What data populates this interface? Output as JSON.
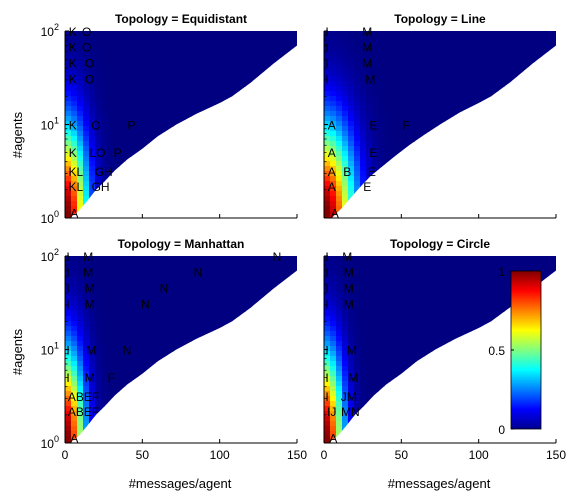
{
  "figure": {
    "xlabel": "#messages/agent",
    "ylabel": "#agents",
    "colormap": "jet",
    "clim": [
      0,
      1
    ],
    "colorbar_ticks": [
      "0",
      "0.5",
      "1"
    ]
  },
  "chart_data": [
    {
      "type": "heatmap",
      "title": "Topology = Equidistant",
      "xlim": [
        0,
        150
      ],
      "ylim": [
        1,
        100
      ],
      "yscale": "log",
      "x_ticks": [
        "0",
        "50",
        "100",
        "150"
      ],
      "y_ticks": [
        "10^0",
        "10^1",
        "10^2"
      ],
      "x_ticks_visible": false,
      "y_ticks_visible": true,
      "boundary": [
        [
          3,
          1
        ],
        [
          9,
          1.2
        ],
        [
          14,
          1.5
        ],
        [
          20,
          2
        ],
        [
          26,
          2.5
        ],
        [
          32,
          3.2
        ],
        [
          40,
          4.2
        ],
        [
          50,
          5.5
        ],
        [
          60,
          7.5
        ],
        [
          72,
          10
        ],
        [
          85,
          13
        ],
        [
          100,
          17
        ],
        [
          108,
          20
        ],
        [
          120,
          28
        ],
        [
          135,
          45
        ],
        [
          150,
          70
        ],
        [
          150,
          100
        ]
      ],
      "hot_decay": 16,
      "annotations": [
        {
          "x": 5,
          "y": 100,
          "text": "K"
        },
        {
          "x": 14,
          "y": 100,
          "text": "O"
        },
        {
          "x": 5,
          "y": 68,
          "text": "K"
        },
        {
          "x": 14,
          "y": 68,
          "text": "O"
        },
        {
          "x": 5,
          "y": 46,
          "text": "K"
        },
        {
          "x": 16,
          "y": 46,
          "text": "O"
        },
        {
          "x": 5,
          "y": 31,
          "text": "K"
        },
        {
          "x": 16,
          "y": 31,
          "text": "O"
        },
        {
          "x": 5,
          "y": 10,
          "text": "K"
        },
        {
          "x": 20,
          "y": 10,
          "text": "O"
        },
        {
          "x": 43,
          "y": 10,
          "text": "P"
        },
        {
          "x": 5,
          "y": 5.1,
          "text": "K"
        },
        {
          "x": 21,
          "y": 5.1,
          "text": "LO"
        },
        {
          "x": 34,
          "y": 5.1,
          "text": "P"
        },
        {
          "x": 7,
          "y": 3.2,
          "text": "KL"
        },
        {
          "x": 25,
          "y": 3.2,
          "text": "GH"
        },
        {
          "x": 7,
          "y": 2.2,
          "text": "KL"
        },
        {
          "x": 23,
          "y": 2.2,
          "text": "GH"
        },
        {
          "x": 6,
          "y": 1.15,
          "text": "A"
        }
      ]
    },
    {
      "type": "heatmap",
      "title": "Topology = Line",
      "xlim": [
        0,
        150
      ],
      "ylim": [
        1,
        100
      ],
      "yscale": "log",
      "x_ticks": [
        "0",
        "50",
        "100",
        "150"
      ],
      "y_ticks": [
        "10^0",
        "10^1",
        "10^2"
      ],
      "x_ticks_visible": false,
      "y_ticks_visible": false,
      "boundary": [
        [
          5,
          1
        ],
        [
          12,
          1.3
        ],
        [
          18,
          1.7
        ],
        [
          24,
          2.2
        ],
        [
          30,
          2.8
        ],
        [
          38,
          3.6
        ],
        [
          46,
          4.6
        ],
        [
          55,
          6
        ],
        [
          65,
          7.8
        ],
        [
          75,
          10
        ],
        [
          88,
          13.5
        ],
        [
          100,
          17
        ],
        [
          108,
          20
        ],
        [
          120,
          28
        ],
        [
          135,
          45
        ],
        [
          150,
          70
        ],
        [
          150,
          100
        ]
      ],
      "hot_decay": 22,
      "annotations": [
        {
          "x": 2,
          "y": 100,
          "text": "I"
        },
        {
          "x": 28,
          "y": 100,
          "text": "M"
        },
        {
          "x": 2,
          "y": 68,
          "text": "I"
        },
        {
          "x": 28,
          "y": 68,
          "text": "M"
        },
        {
          "x": 2,
          "y": 46,
          "text": "I"
        },
        {
          "x": 28,
          "y": 46,
          "text": "M"
        },
        {
          "x": 2,
          "y": 31,
          "text": "I"
        },
        {
          "x": 30,
          "y": 31,
          "text": "M"
        },
        {
          "x": 5,
          "y": 10,
          "text": "A"
        },
        {
          "x": 32,
          "y": 10,
          "text": "E"
        },
        {
          "x": 53,
          "y": 10,
          "text": "F"
        },
        {
          "x": 5,
          "y": 5.1,
          "text": "A"
        },
        {
          "x": 32,
          "y": 5.1,
          "text": "E"
        },
        {
          "x": 5,
          "y": 3.2,
          "text": "A"
        },
        {
          "x": 15,
          "y": 3.2,
          "text": "B"
        },
        {
          "x": 31,
          "y": 3.2,
          "text": "E"
        },
        {
          "x": 5,
          "y": 2.2,
          "text": "A"
        },
        {
          "x": 28,
          "y": 2.2,
          "text": "E"
        },
        {
          "x": 7,
          "y": 1.15,
          "text": "A"
        }
      ]
    },
    {
      "type": "heatmap",
      "title": "Topology = Manhattan",
      "xlim": [
        0,
        150
      ],
      "ylim": [
        1,
        100
      ],
      "yscale": "log",
      "x_ticks": [
        "0",
        "50",
        "100",
        "150"
      ],
      "y_ticks": [
        "10^0",
        "10^1",
        "10^2"
      ],
      "x_ticks_visible": true,
      "y_ticks_visible": true,
      "boundary": [
        [
          3,
          1
        ],
        [
          9,
          1.2
        ],
        [
          14,
          1.5
        ],
        [
          20,
          2
        ],
        [
          26,
          2.5
        ],
        [
          32,
          3.2
        ],
        [
          40,
          4.2
        ],
        [
          50,
          5.5
        ],
        [
          60,
          7.5
        ],
        [
          72,
          10
        ],
        [
          85,
          13
        ],
        [
          100,
          17
        ],
        [
          108,
          20
        ],
        [
          120,
          28
        ],
        [
          135,
          45
        ],
        [
          150,
          70
        ],
        [
          150,
          100
        ]
      ],
      "hot_decay": 14,
      "annotations": [
        {
          "x": 2,
          "y": 100,
          "text": "I"
        },
        {
          "x": 15,
          "y": 100,
          "text": "M"
        },
        {
          "x": 137,
          "y": 100,
          "text": "N"
        },
        {
          "x": 2,
          "y": 68,
          "text": "I"
        },
        {
          "x": 15,
          "y": 68,
          "text": "M"
        },
        {
          "x": 86,
          "y": 68,
          "text": "N"
        },
        {
          "x": 2,
          "y": 46,
          "text": "I"
        },
        {
          "x": 16,
          "y": 46,
          "text": "M"
        },
        {
          "x": 64,
          "y": 46,
          "text": "N"
        },
        {
          "x": 2,
          "y": 31,
          "text": "I"
        },
        {
          "x": 16,
          "y": 31,
          "text": "M"
        },
        {
          "x": 52,
          "y": 31,
          "text": "N"
        },
        {
          "x": 2,
          "y": 10,
          "text": "I"
        },
        {
          "x": 17,
          "y": 10,
          "text": "M"
        },
        {
          "x": 40,
          "y": 10,
          "text": "N"
        },
        {
          "x": 2,
          "y": 5.1,
          "text": "I"
        },
        {
          "x": 16,
          "y": 5.1,
          "text": "M"
        },
        {
          "x": 30,
          "y": 5.1,
          "text": "F"
        },
        {
          "x": 12,
          "y": 3.2,
          "text": "ABEF"
        },
        {
          "x": 12,
          "y": 2.2,
          "text": "ABEF"
        },
        {
          "x": 6,
          "y": 1.15,
          "text": "A"
        }
      ]
    },
    {
      "type": "heatmap",
      "title": "Topology = Circle",
      "xlim": [
        0,
        150
      ],
      "ylim": [
        1,
        100
      ],
      "yscale": "log",
      "x_ticks": [
        "0",
        "50",
        "100",
        "150"
      ],
      "y_ticks": [
        "10^0",
        "10^1",
        "10^2"
      ],
      "x_ticks_visible": true,
      "y_ticks_visible": false,
      "boundary": [
        [
          3,
          1
        ],
        [
          9,
          1.2
        ],
        [
          14,
          1.5
        ],
        [
          20,
          2
        ],
        [
          26,
          2.5
        ],
        [
          32,
          3.2
        ],
        [
          40,
          4.2
        ],
        [
          50,
          5.5
        ],
        [
          60,
          7.5
        ],
        [
          72,
          10
        ],
        [
          85,
          13
        ],
        [
          100,
          17
        ],
        [
          108,
          20
        ],
        [
          120,
          28
        ],
        [
          135,
          45
        ],
        [
          150,
          70
        ],
        [
          150,
          100
        ]
      ],
      "hot_decay": 14,
      "annotations": [
        {
          "x": 2,
          "y": 100,
          "text": "I"
        },
        {
          "x": 15,
          "y": 100,
          "text": "M"
        },
        {
          "x": 2,
          "y": 68,
          "text": "I"
        },
        {
          "x": 16,
          "y": 68,
          "text": "M"
        },
        {
          "x": 2,
          "y": 46,
          "text": "I"
        },
        {
          "x": 16,
          "y": 46,
          "text": "M"
        },
        {
          "x": 2,
          "y": 31,
          "text": "I"
        },
        {
          "x": 16,
          "y": 31,
          "text": "M"
        },
        {
          "x": 2,
          "y": 10,
          "text": "I"
        },
        {
          "x": 18,
          "y": 10,
          "text": "M"
        },
        {
          "x": 2,
          "y": 5.1,
          "text": "I"
        },
        {
          "x": 19,
          "y": 5.1,
          "text": "M"
        },
        {
          "x": 2,
          "y": 3.2,
          "text": "I"
        },
        {
          "x": 16,
          "y": 3.2,
          "text": "JM"
        },
        {
          "x": 5,
          "y": 2.2,
          "text": "IJ"
        },
        {
          "x": 17,
          "y": 2.2,
          "text": "MN"
        },
        {
          "x": 6,
          "y": 1.15,
          "text": "A"
        }
      ]
    }
  ]
}
